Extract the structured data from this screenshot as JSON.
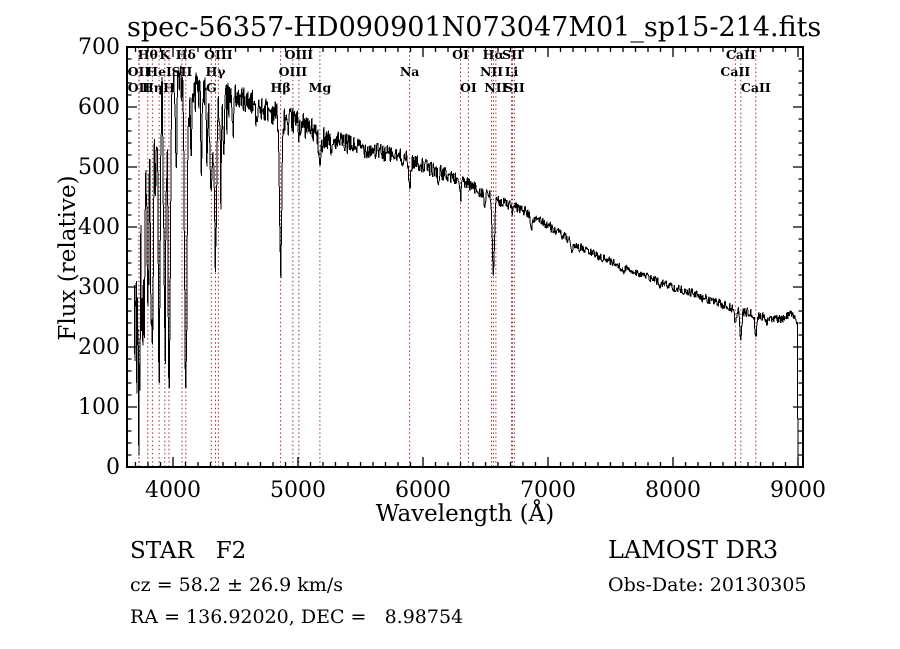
{
  "title": "spec-56357-HD090901N073047M01_sp15-214.fits",
  "footer": {
    "class_label": "STAR   F2",
    "cz": "cz = 58.2 ± 26.9 km/s",
    "radec": "RA = 136.92020, DEC =   8.98754",
    "survey": "LAMOST DR3",
    "obs_date": "Obs-Date: 20130305"
  },
  "colors": {
    "background": "#ffffff",
    "spectrum": "#000000",
    "frame": "#000000",
    "text": "#000000",
    "line_marker": "#9e3030"
  },
  "chart_data": {
    "type": "line",
    "title": "spec-56357-HD090901N073047M01_sp15-214.fits",
    "xlabel": "Wavelength (Å)",
    "ylabel": "Flux (relative)",
    "xlim": [
      3632,
      9040
    ],
    "ylim": [
      0,
      700
    ],
    "x_ticks": [
      4000,
      5000,
      6000,
      7000,
      8000,
      9000
    ],
    "y_ticks": [
      0,
      100,
      200,
      300,
      400,
      500,
      600,
      700
    ],
    "x_minor_step": 100,
    "y_minor_step": 20,
    "grid": false,
    "legend": null,
    "spectral_line_markers": [
      {
        "label": "Hθ",
        "wavelength": 3798,
        "row": 1
      },
      {
        "label": "K",
        "wavelength": 3934,
        "row": 1
      },
      {
        "label": "Hδ",
        "wavelength": 4102,
        "row": 1
      },
      {
        "label": "OIII",
        "wavelength": 4363,
        "row": 1
      },
      {
        "label": "OIII",
        "wavelength": 5007,
        "row": 1
      },
      {
        "label": "OI",
        "wavelength": 6300,
        "row": 1
      },
      {
        "label": "Hα",
        "wavelength": 6563,
        "row": 1
      },
      {
        "label": "SII",
        "wavelength": 6716,
        "row": 1
      },
      {
        "label": "CaII",
        "wavelength": 8542,
        "row": 1
      },
      {
        "label": "OII",
        "wavelength": 3727,
        "row": 2
      },
      {
        "label": "HeI",
        "wavelength": 3889,
        "row": 2
      },
      {
        "label": "SII",
        "wavelength": 4072,
        "row": 2
      },
      {
        "label": "Hγ",
        "wavelength": 4340,
        "row": 2
      },
      {
        "label": "OIII",
        "wavelength": 4959,
        "row": 2
      },
      {
        "label": "Na",
        "wavelength": 5893,
        "row": 2
      },
      {
        "label": "NII",
        "wavelength": 6548,
        "row": 2
      },
      {
        "label": "Li",
        "wavelength": 6708,
        "row": 2
      },
      {
        "label": "CaII",
        "wavelength": 8498,
        "row": 2
      },
      {
        "label": "OII",
        "wavelength": 3729,
        "row": 3
      },
      {
        "label": "Hη",
        "wavelength": 3835,
        "row": 3
      },
      {
        "label": "H",
        "wavelength": 3968,
        "row": 3
      },
      {
        "label": "G",
        "wavelength": 4306,
        "row": 3
      },
      {
        "label": "Hβ",
        "wavelength": 4861,
        "row": 3
      },
      {
        "label": "Mg",
        "wavelength": 5175,
        "row": 3
      },
      {
        "label": "OI",
        "wavelength": 6363,
        "row": 3
      },
      {
        "label": "NII",
        "wavelength": 6583,
        "row": 3
      },
      {
        "label": "SII",
        "wavelength": 6731,
        "row": 3
      },
      {
        "label": "CaII",
        "wavelength": 8662,
        "row": 3
      }
    ],
    "spectrum": {
      "wavelength_start": 3690,
      "wavelength_end": 9000,
      "continuum_points": [
        [
          3690,
          480
        ],
        [
          3705,
          560
        ],
        [
          3730,
          600
        ],
        [
          3780,
          625
        ],
        [
          3850,
          640
        ],
        [
          3950,
          650
        ],
        [
          4020,
          658
        ],
        [
          4100,
          650
        ],
        [
          4180,
          638
        ],
        [
          4250,
          630
        ],
        [
          4320,
          625
        ],
        [
          4400,
          622
        ],
        [
          4500,
          618
        ],
        [
          4600,
          610
        ],
        [
          4700,
          600
        ],
        [
          4800,
          592
        ],
        [
          4900,
          580
        ],
        [
          5000,
          575
        ],
        [
          5100,
          562
        ],
        [
          5200,
          552
        ],
        [
          5300,
          543
        ],
        [
          5450,
          535
        ],
        [
          5600,
          528
        ],
        [
          5750,
          520
        ],
        [
          5900,
          512
        ],
        [
          6050,
          498
        ],
        [
          6200,
          486
        ],
        [
          6350,
          472
        ],
        [
          6500,
          455
        ],
        [
          6650,
          440
        ],
        [
          6800,
          428
        ],
        [
          6950,
          410
        ],
        [
          7100,
          388
        ],
        [
          7250,
          366
        ],
        [
          7400,
          352
        ],
        [
          7550,
          338
        ],
        [
          7700,
          325
        ],
        [
          7850,
          312
        ],
        [
          8000,
          300
        ],
        [
          8150,
          290
        ],
        [
          8300,
          278
        ],
        [
          8450,
          266
        ],
        [
          8600,
          257
        ],
        [
          8750,
          249
        ],
        [
          8870,
          246
        ],
        [
          8940,
          256
        ],
        [
          8985,
          245
        ],
        [
          8995,
          238
        ],
        [
          8998,
          60
        ],
        [
          9000,
          2
        ]
      ],
      "absorption_features": [
        [
          3693,
          100,
          2.5
        ],
        [
          3705,
          340,
          5
        ],
        [
          3712,
          300,
          4
        ],
        [
          3722,
          360,
          4
        ],
        [
          3727,
          350,
          5
        ],
        [
          3734,
          290,
          5
        ],
        [
          3750,
          270,
          6
        ],
        [
          3759,
          420,
          4
        ],
        [
          3771,
          265,
          6
        ],
        [
          3798,
          235,
          7
        ],
        [
          3820,
          420,
          5
        ],
        [
          3835,
          170,
          8
        ],
        [
          3860,
          430,
          5
        ],
        [
          3889,
          180,
          8
        ],
        [
          3934,
          220,
          8
        ],
        [
          3969,
          135,
          9
        ],
        [
          4026,
          480,
          5
        ],
        [
          4102,
          125,
          10
        ],
        [
          4144,
          500,
          5
        ],
        [
          4227,
          520,
          5
        ],
        [
          4272,
          510,
          5
        ],
        [
          4306,
          470,
          12
        ],
        [
          4340,
          350,
          9
        ],
        [
          4383,
          490,
          6
        ],
        [
          4405,
          520,
          5
        ],
        [
          4481,
          550,
          5
        ],
        [
          4668,
          560,
          5
        ],
        [
          4861,
          330,
          9
        ],
        [
          4922,
          545,
          5
        ],
        [
          5007,
          555,
          4
        ],
        [
          5175,
          500,
          10
        ],
        [
          5270,
          520,
          6
        ],
        [
          5893,
          470,
          9
        ],
        [
          6122,
          470,
          4
        ],
        [
          6300,
          450,
          5
        ],
        [
          6494,
          430,
          5
        ],
        [
          6563,
          325,
          9
        ],
        [
          6717,
          420,
          4
        ],
        [
          6870,
          400,
          12
        ],
        [
          7190,
          352,
          8
        ],
        [
          7600,
          322,
          10
        ],
        [
          7900,
          300,
          6
        ],
        [
          8230,
          278,
          6
        ],
        [
          8498,
          238,
          7
        ],
        [
          8542,
          214,
          8
        ],
        [
          8662,
          218,
          8
        ],
        [
          8750,
          238,
          5
        ]
      ],
      "noise_amplitude": [
        [
          3690,
          100
        ],
        [
          3720,
          60
        ],
        [
          3760,
          45
        ],
        [
          3820,
          40
        ],
        [
          3900,
          35
        ],
        [
          4000,
          25
        ],
        [
          4150,
          25
        ],
        [
          4400,
          22
        ],
        [
          4700,
          22
        ],
        [
          5000,
          22
        ],
        [
          5300,
          18
        ],
        [
          5600,
          16
        ],
        [
          6000,
          13
        ],
        [
          6300,
          12
        ],
        [
          6600,
          10
        ],
        [
          7000,
          8
        ],
        [
          7500,
          7
        ],
        [
          8000,
          7
        ],
        [
          8600,
          8
        ],
        [
          8960,
          6
        ],
        [
          9000,
          4
        ]
      ]
    }
  }
}
